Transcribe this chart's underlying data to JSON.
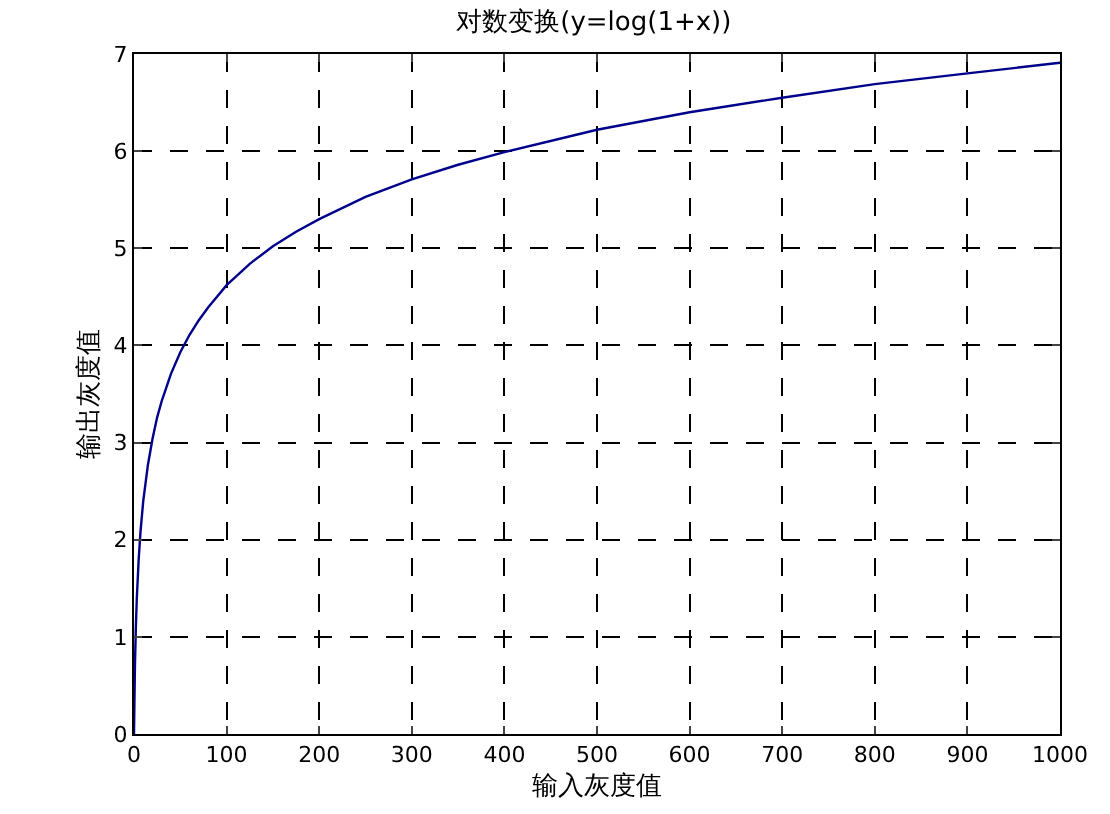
{
  "chart_data": {
    "type": "line",
    "title": "对数变换(y=log(1+x))",
    "xlabel": "输入灰度值",
    "ylabel": "输出灰度值",
    "x": [
      0,
      1,
      2,
      3,
      5,
      7,
      10,
      15,
      20,
      25,
      30,
      40,
      50,
      60,
      70,
      80,
      100,
      125,
      150,
      175,
      200,
      250,
      300,
      350,
      400,
      500,
      600,
      700,
      800,
      900,
      1000
    ],
    "series": [
      {
        "color": "#00008b",
        "values": [
          0,
          0.69,
          1.1,
          1.39,
          1.79,
          2.08,
          2.4,
          2.77,
          3.04,
          3.26,
          3.43,
          3.71,
          3.93,
          4.11,
          4.26,
          4.39,
          4.62,
          4.84,
          5.02,
          5.17,
          5.3,
          5.53,
          5.71,
          5.86,
          5.99,
          6.22,
          6.4,
          6.55,
          6.69,
          6.8,
          6.91
        ]
      }
    ],
    "xlim": [
      0,
      1000
    ],
    "xticks": [
      0,
      100,
      200,
      300,
      400,
      500,
      600,
      700,
      800,
      900,
      1000
    ],
    "ylim": [
      0,
      7
    ],
    "yticks": [
      0,
      1,
      2,
      3,
      4,
      5,
      6,
      7
    ],
    "grid": true,
    "line_style": "solid",
    "marker": "none"
  }
}
